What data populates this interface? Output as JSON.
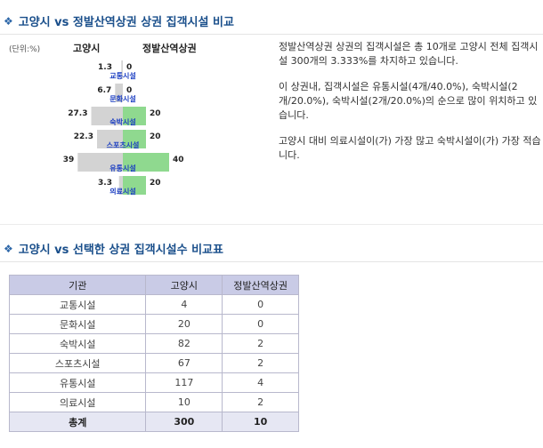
{
  "section1": {
    "bullet": "❖",
    "title": "고양시 vs 정발산역상권 상권 집객시설 비교"
  },
  "section2": {
    "bullet": "❖",
    "title": "고양시 vs 선택한 상권 집객시설수 비교표"
  },
  "chart": {
    "unit": "(단위:%)",
    "left_header": "고양시",
    "right_header": "정발산역상권"
  },
  "chart_data": {
    "type": "bar",
    "orientation": "population-pyramid",
    "categories": [
      "교통시설",
      "문화시설",
      "숙박시설",
      "스포츠시설",
      "유통시설",
      "의료시설"
    ],
    "series": [
      {
        "name": "고양시",
        "side": "left",
        "values_label": [
          "1.3",
          "6.7",
          "27.3",
          "22.3",
          "39",
          "3.3"
        ],
        "values": [
          1.3,
          6.7,
          27.3,
          22.3,
          39,
          3.3
        ]
      },
      {
        "name": "정발산역상권",
        "side": "right",
        "values_label": [
          "0",
          "0",
          "20",
          "20",
          "40",
          "20"
        ],
        "values": [
          0,
          0,
          20,
          20,
          40,
          20
        ]
      }
    ],
    "title": "",
    "xlabel": "",
    "ylabel": "",
    "colors": {
      "left": "#d3d3d3",
      "right": "#8fd98f",
      "category_text": "#1b3ec2"
    },
    "grid": false
  },
  "description": {
    "p1": "정발산역상권 상권의 집객시설은 총 10개로 고양시 전체 집객시설 300개의 3.333%를 차지하고 있습니다.",
    "p2": "이 상권내, 집객시설은 유통시설(4개/40.0%), 숙박시설(2개/20.0%), 숙박시설(2개/20.0%)의 순으로 많이 위치하고 있습니다.",
    "p3": "고양시 대비 의료시설이(가) 가장 많고 숙박시설이(가) 가장 적습니다."
  },
  "table": {
    "headers": [
      "기관",
      "고양시",
      "정발산역상권"
    ],
    "rows": [
      [
        "교통시설",
        "4",
        "0"
      ],
      [
        "문화시설",
        "20",
        "0"
      ],
      [
        "숙박시설",
        "82",
        "2"
      ],
      [
        "스포츠시설",
        "67",
        "2"
      ],
      [
        "유통시설",
        "117",
        "4"
      ],
      [
        "의료시설",
        "10",
        "2"
      ]
    ],
    "total": [
      "총계",
      "300",
      "10"
    ]
  }
}
